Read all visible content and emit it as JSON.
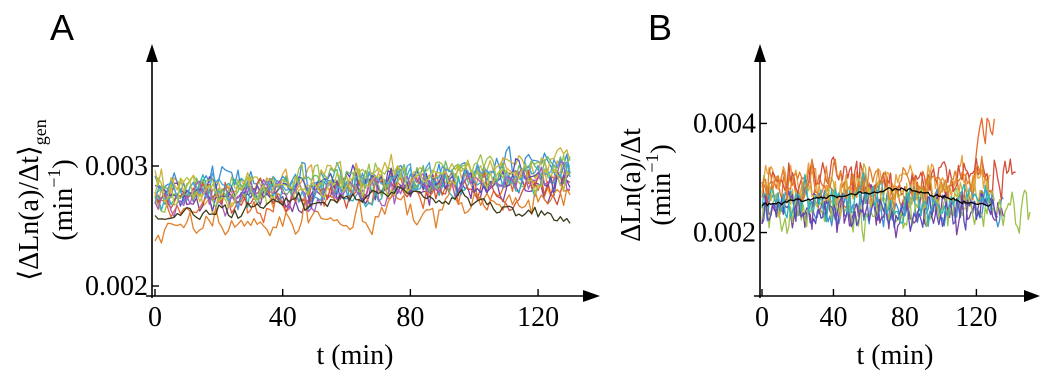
{
  "chart_data": [
    {
      "panel": "A",
      "type": "line",
      "xlabel": "t (min)",
      "ylabel_main": "⟨ΔLn(a)/Δt⟩",
      "ylabel_sub": "gen",
      "ylabel_unit": "(min",
      "ylabel_unit_exp": "−1",
      "ylabel_unit_close": ")",
      "xlim": [
        0,
        130
      ],
      "ylim": [
        0.0019,
        0.0039
      ],
      "xticks": [
        0,
        40,
        80,
        120
      ],
      "xtick_labels": [
        "0",
        "40",
        "80",
        "120"
      ],
      "yticks": [
        0.002,
        0.003
      ],
      "ytick_labels": [
        "0.002",
        "0.003"
      ],
      "x_end": 130,
      "series_colors": [
        "#e8a13c",
        "#3b8fd4",
        "#7b3fa0",
        "#e86a2a",
        "#9bc24a",
        "#2fb0b8",
        "#c9b43a",
        "#d14e3a",
        "#5a4bb8",
        "#6fb86a",
        "#e0802a",
        "#4aa0d8",
        "#a85cc0",
        "#b8c23a"
      ],
      "series_means": [
        0.00285,
        0.0029,
        0.0028,
        0.00275,
        0.00288,
        0.00282,
        0.00292,
        0.00278,
        0.00283,
        0.00287,
        0.0026,
        0.00286,
        0.00281,
        0.00284
      ],
      "series_trend": [
        0.0002,
        0.00022,
        0.00015,
        0.00018,
        0.0002,
        0.00016,
        0.00024,
        0.00012,
        0.00018,
        0.0002,
        0.00025,
        0.00022,
        0.00016,
        0.00019
      ],
      "series_noise": 0.00011,
      "mean_line": {
        "color": "#3a3a1a",
        "start": 0.00255,
        "peak": 0.0028,
        "end": 0.00255
      }
    },
    {
      "panel": "B",
      "type": "line",
      "xlabel": "t (min)",
      "ylabel_main": "ΔLn(a)/Δt",
      "ylabel_unit": "(min",
      "ylabel_unit_exp": "−1",
      "ylabel_unit_close": ")",
      "xlim": [
        0,
        150
      ],
      "ylim": [
        0.0008,
        0.0052
      ],
      "xticks": [
        0,
        40,
        80,
        120
      ],
      "xtick_labels": [
        "0",
        "40",
        "80",
        "120"
      ],
      "yticks": [
        0.002,
        0.004
      ],
      "ytick_labels": [
        "0.002",
        "0.004"
      ],
      "series_colors": [
        "#e86a2a",
        "#e8a13c",
        "#3b8fd4",
        "#7b3fa0",
        "#9bc24a",
        "#d14e3a",
        "#c9b43a",
        "#5a4bb8",
        "#2fb0b8",
        "#e0802a"
      ],
      "series_means": [
        0.0028,
        0.0029,
        0.0025,
        0.0024,
        0.0024,
        0.003,
        0.0027,
        0.0024,
        0.0026,
        0.0029
      ],
      "series_ends": [
        130,
        128,
        135,
        136,
        150,
        142,
        130,
        132,
        128,
        126
      ],
      "series_noise": 0.00028,
      "mean_line": {
        "color": "#000000",
        "start": 0.0025,
        "peak": 0.0028,
        "end": 0.0025,
        "x_end": 128
      }
    }
  ],
  "panel_letters": [
    "A",
    "B"
  ]
}
